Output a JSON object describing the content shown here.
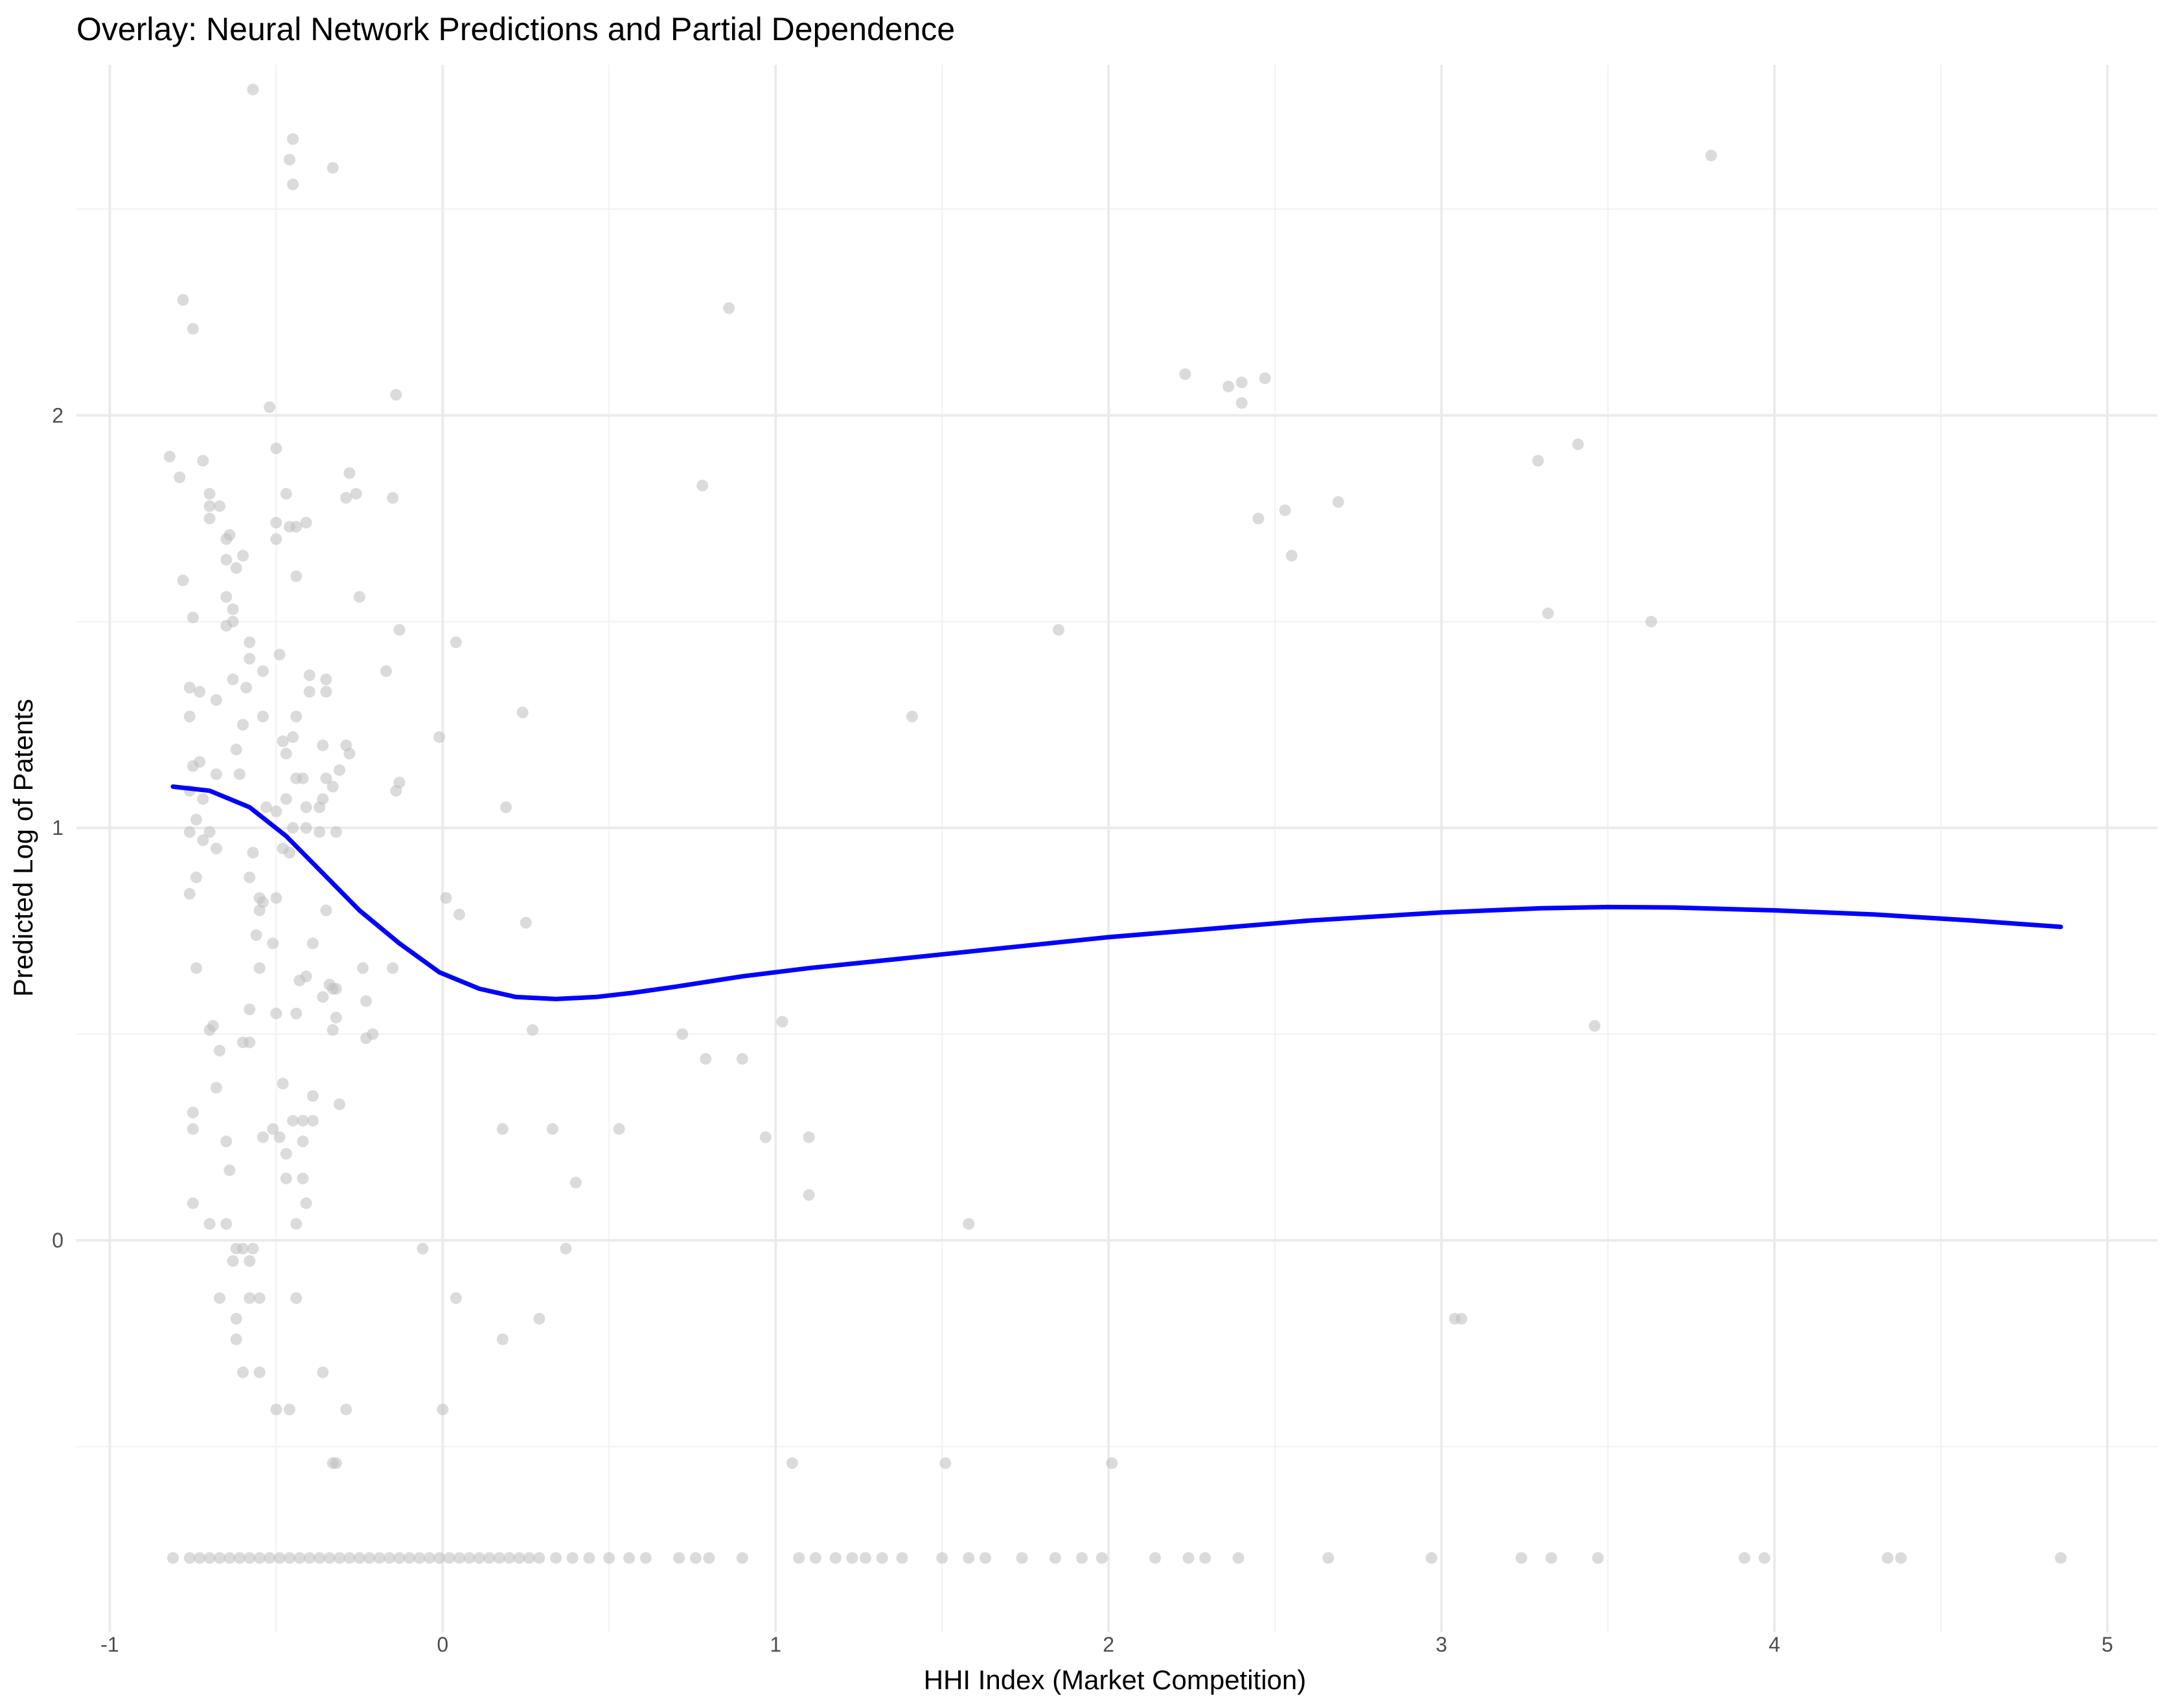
{
  "chart_data": {
    "type": "scatter",
    "title": "Overlay: Neural Network Predictions and Partial Dependence",
    "xlabel": "HHI Index (Market Competition)",
    "ylabel": "Predicted Log of Patents",
    "xlim": [
      -1.1,
      5.15
    ],
    "ylim": [
      -0.95,
      2.85
    ],
    "x_ticks": [
      -1,
      0,
      1,
      2,
      3,
      4,
      5
    ],
    "x_tick_labels": [
      "-1",
      "0",
      "1",
      "2",
      "3",
      "4",
      "5"
    ],
    "y_ticks": [
      0,
      1,
      2
    ],
    "y_tick_labels": [
      "0",
      "1",
      "2"
    ],
    "grid": true,
    "colors": {
      "points": "#bebebe",
      "partial_dependence": "#0000ff",
      "grid": "#ebebeb"
    },
    "series": [
      {
        "type": "scatter",
        "points": [
          [
            -0.57,
            2.79
          ],
          [
            -0.45,
            2.67
          ],
          [
            -0.46,
            2.62
          ],
          [
            -0.33,
            2.6
          ],
          [
            -0.45,
            2.56
          ],
          [
            3.81,
            2.63
          ],
          [
            -0.78,
            2.28
          ],
          [
            -0.75,
            2.21
          ],
          [
            0.86,
            2.26
          ],
          [
            2.23,
            2.1
          ],
          [
            2.36,
            2.07
          ],
          [
            2.4,
            2.08
          ],
          [
            2.47,
            2.09
          ],
          [
            2.4,
            2.03
          ],
          [
            -0.52,
            2.02
          ],
          [
            -0.14,
            2.05
          ],
          [
            -0.82,
            1.9
          ],
          [
            -0.79,
            1.85
          ],
          [
            -0.72,
            1.89
          ],
          [
            -0.5,
            1.92
          ],
          [
            -0.28,
            1.86
          ],
          [
            3.29,
            1.89
          ],
          [
            3.41,
            1.93
          ],
          [
            0.78,
            1.83
          ],
          [
            -0.7,
            1.81
          ],
          [
            -0.47,
            1.81
          ],
          [
            -0.29,
            1.8
          ],
          [
            -0.26,
            1.81
          ],
          [
            -0.15,
            1.8
          ],
          [
            -0.7,
            1.78
          ],
          [
            -0.67,
            1.78
          ],
          [
            -0.7,
            1.75
          ],
          [
            -0.5,
            1.74
          ],
          [
            -0.46,
            1.73
          ],
          [
            -0.44,
            1.73
          ],
          [
            -0.41,
            1.74
          ],
          [
            2.53,
            1.77
          ],
          [
            2.69,
            1.79
          ],
          [
            2.45,
            1.75
          ],
          [
            -0.65,
            1.7
          ],
          [
            -0.64,
            1.71
          ],
          [
            -0.5,
            1.7
          ],
          [
            -0.65,
            1.65
          ],
          [
            -0.6,
            1.66
          ],
          [
            -0.62,
            1.63
          ],
          [
            -0.78,
            1.6
          ],
          [
            -0.44,
            1.61
          ],
          [
            2.55,
            1.66
          ],
          [
            -0.65,
            1.56
          ],
          [
            -0.25,
            1.56
          ],
          [
            -0.63,
            1.53
          ],
          [
            -0.75,
            1.51
          ],
          [
            -0.65,
            1.49
          ],
          [
            -0.63,
            1.5
          ],
          [
            3.32,
            1.52
          ],
          [
            3.63,
            1.5
          ],
          [
            -0.13,
            1.48
          ],
          [
            1.85,
            1.48
          ],
          [
            -0.58,
            1.45
          ],
          [
            0.04,
            1.45
          ],
          [
            -0.49,
            1.42
          ],
          [
            -0.58,
            1.41
          ],
          [
            -0.54,
            1.38
          ],
          [
            -0.17,
            1.38
          ],
          [
            -0.4,
            1.37
          ],
          [
            -0.35,
            1.36
          ],
          [
            -0.63,
            1.36
          ],
          [
            -0.76,
            1.34
          ],
          [
            -0.73,
            1.33
          ],
          [
            -0.59,
            1.34
          ],
          [
            -0.4,
            1.33
          ],
          [
            -0.35,
            1.33
          ],
          [
            0.24,
            1.28
          ],
          [
            -0.68,
            1.31
          ],
          [
            -0.76,
            1.27
          ],
          [
            -0.54,
            1.27
          ],
          [
            -0.44,
            1.27
          ],
          [
            1.41,
            1.27
          ],
          [
            -0.6,
            1.25
          ],
          [
            -0.48,
            1.21
          ],
          [
            -0.45,
            1.22
          ],
          [
            -0.36,
            1.2
          ],
          [
            -0.29,
            1.2
          ],
          [
            -0.01,
            1.22
          ],
          [
            -0.62,
            1.19
          ],
          [
            -0.47,
            1.18
          ],
          [
            -0.28,
            1.18
          ],
          [
            -0.73,
            1.16
          ],
          [
            -0.75,
            1.15
          ],
          [
            -0.31,
            1.14
          ],
          [
            -0.61,
            1.13
          ],
          [
            -0.68,
            1.13
          ],
          [
            -0.44,
            1.12
          ],
          [
            -0.42,
            1.12
          ],
          [
            -0.35,
            1.12
          ],
          [
            -0.13,
            1.11
          ],
          [
            -0.33,
            1.1
          ],
          [
            -0.76,
            1.09
          ],
          [
            -0.14,
            1.09
          ],
          [
            -0.72,
            1.07
          ],
          [
            -0.47,
            1.07
          ],
          [
            -0.36,
            1.07
          ],
          [
            -0.41,
            1.05
          ],
          [
            -0.37,
            1.05
          ],
          [
            -0.53,
            1.05
          ],
          [
            -0.5,
            1.04
          ],
          [
            -0.74,
            1.02
          ],
          [
            0.19,
            1.05
          ],
          [
            -0.76,
            0.99
          ],
          [
            -0.7,
            0.99
          ],
          [
            -0.72,
            0.97
          ],
          [
            -0.45,
            1.0
          ],
          [
            -0.41,
            1.0
          ],
          [
            -0.37,
            0.99
          ],
          [
            -0.32,
            0.99
          ],
          [
            -0.68,
            0.95
          ],
          [
            -0.48,
            0.95
          ],
          [
            -0.46,
            0.94
          ],
          [
            -0.57,
            0.94
          ],
          [
            -0.74,
            0.88
          ],
          [
            -0.58,
            0.88
          ],
          [
            -0.76,
            0.84
          ],
          [
            -0.55,
            0.83
          ],
          [
            -0.5,
            0.83
          ],
          [
            0.01,
            0.83
          ],
          [
            -0.54,
            0.82
          ],
          [
            -0.55,
            0.8
          ],
          [
            -0.35,
            0.8
          ],
          [
            0.05,
            0.79
          ],
          [
            0.25,
            0.77
          ],
          [
            -0.56,
            0.74
          ],
          [
            -0.51,
            0.72
          ],
          [
            -0.39,
            0.72
          ],
          [
            -0.74,
            0.66
          ],
          [
            -0.55,
            0.66
          ],
          [
            -0.24,
            0.66
          ],
          [
            -0.15,
            0.66
          ],
          [
            -0.41,
            0.64
          ],
          [
            -0.43,
            0.63
          ],
          [
            -0.34,
            0.62
          ],
          [
            -0.33,
            0.61
          ],
          [
            -0.32,
            0.61
          ],
          [
            -0.36,
            0.59
          ],
          [
            -0.23,
            0.58
          ],
          [
            -0.58,
            0.56
          ],
          [
            -0.5,
            0.55
          ],
          [
            -0.44,
            0.55
          ],
          [
            -0.32,
            0.54
          ],
          [
            1.02,
            0.53
          ],
          [
            -0.69,
            0.52
          ],
          [
            -0.7,
            0.51
          ],
          [
            -0.33,
            0.51
          ],
          [
            0.27,
            0.51
          ],
          [
            0.72,
            0.5
          ],
          [
            3.46,
            0.52
          ],
          [
            -0.23,
            0.49
          ],
          [
            -0.21,
            0.5
          ],
          [
            -0.6,
            0.48
          ],
          [
            -0.58,
            0.48
          ],
          [
            -0.67,
            0.46
          ],
          [
            0.79,
            0.44
          ],
          [
            0.9,
            0.44
          ],
          [
            -0.48,
            0.38
          ],
          [
            -0.68,
            0.37
          ],
          [
            -0.39,
            0.35
          ],
          [
            -0.31,
            0.33
          ],
          [
            -0.75,
            0.31
          ],
          [
            -0.42,
            0.29
          ],
          [
            -0.45,
            0.29
          ],
          [
            -0.39,
            0.29
          ],
          [
            -0.75,
            0.27
          ],
          [
            -0.51,
            0.27
          ],
          [
            -0.54,
            0.25
          ],
          [
            0.18,
            0.27
          ],
          [
            0.33,
            0.27
          ],
          [
            0.53,
            0.27
          ],
          [
            -0.49,
            0.25
          ],
          [
            -0.65,
            0.24
          ],
          [
            0.97,
            0.25
          ],
          [
            1.1,
            0.25
          ],
          [
            -0.42,
            0.24
          ],
          [
            -0.47,
            0.21
          ],
          [
            -0.64,
            0.17
          ],
          [
            -0.47,
            0.15
          ],
          [
            -0.42,
            0.15
          ],
          [
            0.4,
            0.14
          ],
          [
            1.1,
            0.11
          ],
          [
            -0.75,
            0.09
          ],
          [
            -0.41,
            0.09
          ],
          [
            -0.7,
            0.04
          ],
          [
            -0.65,
            0.04
          ],
          [
            -0.44,
            0.04
          ],
          [
            1.58,
            0.04
          ],
          [
            -0.62,
            -0.02
          ],
          [
            -0.6,
            -0.02
          ],
          [
            -0.57,
            -0.02
          ],
          [
            -0.06,
            -0.02
          ],
          [
            0.37,
            -0.02
          ],
          [
            -0.63,
            -0.05
          ],
          [
            -0.58,
            -0.05
          ],
          [
            -0.67,
            -0.14
          ],
          [
            -0.58,
            -0.14
          ],
          [
            -0.55,
            -0.14
          ],
          [
            -0.44,
            -0.14
          ],
          [
            0.04,
            -0.14
          ],
          [
            -0.62,
            -0.19
          ],
          [
            0.29,
            -0.19
          ],
          [
            3.04,
            -0.19
          ],
          [
            3.06,
            -0.19
          ],
          [
            -0.62,
            -0.24
          ],
          [
            0.18,
            -0.24
          ],
          [
            -0.6,
            -0.32
          ],
          [
            -0.55,
            -0.32
          ],
          [
            -0.36,
            -0.32
          ],
          [
            -0.5,
            -0.41
          ],
          [
            -0.46,
            -0.41
          ],
          [
            -0.29,
            -0.41
          ],
          [
            0.0,
            -0.41
          ],
          [
            -0.33,
            -0.54
          ],
          [
            -0.32,
            -0.54
          ],
          [
            1.05,
            -0.54
          ],
          [
            1.51,
            -0.54
          ],
          [
            2.01,
            -0.54
          ],
          [
            -0.81,
            -0.77
          ],
          [
            -0.76,
            -0.77
          ],
          [
            -0.73,
            -0.77
          ],
          [
            -0.7,
            -0.77
          ],
          [
            -0.67,
            -0.77
          ],
          [
            -0.64,
            -0.77
          ],
          [
            -0.61,
            -0.77
          ],
          [
            -0.58,
            -0.77
          ],
          [
            -0.55,
            -0.77
          ],
          [
            -0.52,
            -0.77
          ],
          [
            -0.49,
            -0.77
          ],
          [
            -0.46,
            -0.77
          ],
          [
            -0.43,
            -0.77
          ],
          [
            -0.4,
            -0.77
          ],
          [
            -0.37,
            -0.77
          ],
          [
            -0.34,
            -0.77
          ],
          [
            -0.31,
            -0.77
          ],
          [
            -0.28,
            -0.77
          ],
          [
            -0.25,
            -0.77
          ],
          [
            -0.22,
            -0.77
          ],
          [
            -0.19,
            -0.77
          ],
          [
            -0.16,
            -0.77
          ],
          [
            -0.13,
            -0.77
          ],
          [
            -0.1,
            -0.77
          ],
          [
            -0.07,
            -0.77
          ],
          [
            -0.04,
            -0.77
          ],
          [
            -0.01,
            -0.77
          ],
          [
            0.02,
            -0.77
          ],
          [
            0.05,
            -0.77
          ],
          [
            0.08,
            -0.77
          ],
          [
            0.11,
            -0.77
          ],
          [
            0.14,
            -0.77
          ],
          [
            0.17,
            -0.77
          ],
          [
            0.2,
            -0.77
          ],
          [
            0.23,
            -0.77
          ],
          [
            0.26,
            -0.77
          ],
          [
            0.29,
            -0.77
          ],
          [
            0.34,
            -0.77
          ],
          [
            0.39,
            -0.77
          ],
          [
            0.44,
            -0.77
          ],
          [
            0.5,
            -0.77
          ],
          [
            0.56,
            -0.77
          ],
          [
            0.61,
            -0.77
          ],
          [
            0.71,
            -0.77
          ],
          [
            0.76,
            -0.77
          ],
          [
            0.8,
            -0.77
          ],
          [
            0.9,
            -0.77
          ],
          [
            1.07,
            -0.77
          ],
          [
            1.12,
            -0.77
          ],
          [
            1.18,
            -0.77
          ],
          [
            1.23,
            -0.77
          ],
          [
            1.27,
            -0.77
          ],
          [
            1.32,
            -0.77
          ],
          [
            1.38,
            -0.77
          ],
          [
            1.5,
            -0.77
          ],
          [
            1.58,
            -0.77
          ],
          [
            1.63,
            -0.77
          ],
          [
            1.74,
            -0.77
          ],
          [
            1.84,
            -0.77
          ],
          [
            1.92,
            -0.77
          ],
          [
            1.98,
            -0.77
          ],
          [
            2.14,
            -0.77
          ],
          [
            2.24,
            -0.77
          ],
          [
            2.29,
            -0.77
          ],
          [
            2.39,
            -0.77
          ],
          [
            2.66,
            -0.77
          ],
          [
            2.97,
            -0.77
          ],
          [
            3.24,
            -0.77
          ],
          [
            3.33,
            -0.77
          ],
          [
            3.47,
            -0.77
          ],
          [
            3.91,
            -0.77
          ],
          [
            3.97,
            -0.77
          ],
          [
            4.34,
            -0.77
          ],
          [
            4.38,
            -0.77
          ],
          [
            4.86,
            -0.77
          ]
        ]
      },
      {
        "type": "line",
        "x": [
          -0.81,
          -0.7,
          -0.58,
          -0.47,
          -0.36,
          -0.25,
          -0.13,
          -0.01,
          0.11,
          0.22,
          0.34,
          0.46,
          0.57,
          0.7,
          0.9,
          1.1,
          1.4,
          1.7,
          2.0,
          2.3,
          2.6,
          3.0,
          3.3,
          3.5,
          3.7,
          4.0,
          4.3,
          4.6,
          4.86
        ],
        "y": [
          1.1,
          1.09,
          1.05,
          0.98,
          0.89,
          0.8,
          0.72,
          0.65,
          0.61,
          0.59,
          0.585,
          0.59,
          0.6,
          0.615,
          0.64,
          0.66,
          0.685,
          0.71,
          0.735,
          0.755,
          0.775,
          0.795,
          0.805,
          0.808,
          0.807,
          0.8,
          0.79,
          0.775,
          0.76
        ]
      }
    ]
  }
}
